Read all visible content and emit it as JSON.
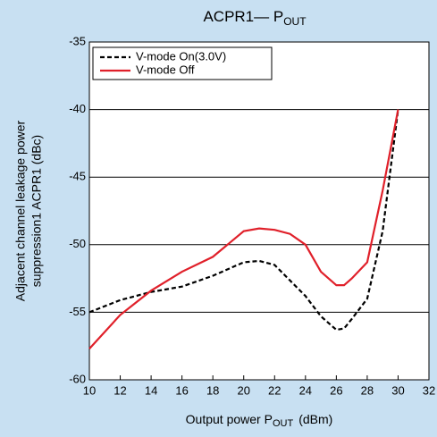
{
  "chart_data": {
    "type": "line",
    "title": "ACPR1— P",
    "title_sub": "OUT",
    "xlabel": "Output power   P",
    "xlabel_sub": "OUT",
    "xlabel_unit": "(dBm)",
    "ylabel_lines": [
      "Adjacent channel leakage power",
      "suppression1   ACPR1  (dBc)"
    ],
    "xlim": [
      10,
      32
    ],
    "xticks": [
      10,
      12,
      14,
      16,
      18,
      20,
      22,
      24,
      26,
      28,
      30,
      32
    ],
    "ylim": [
      -60,
      -35
    ],
    "yticks": [
      -60,
      -55,
      -50,
      -45,
      -40,
      -35
    ],
    "grid": true,
    "legend": "upper left",
    "series": [
      {
        "name": "V-mode On(3.0V)",
        "color": "#000000",
        "dash": true,
        "x": [
          10,
          12,
          14,
          16,
          18,
          20,
          21,
          22,
          24,
          25,
          26,
          26.5,
          27,
          28,
          29,
          30
        ],
        "values": [
          -55,
          -54.1,
          -53.5,
          -53.1,
          -52.3,
          -51.3,
          -51.2,
          -51.5,
          -53.8,
          -55.3,
          -56.3,
          -56.2,
          -55.5,
          -54,
          -49,
          -40
        ]
      },
      {
        "name": "V-mode Off",
        "color": "#e0202a",
        "dash": false,
        "x": [
          10,
          12,
          14,
          16,
          18,
          20,
          21,
          22,
          23,
          24,
          25,
          26,
          26.5,
          27,
          28,
          29,
          30
        ],
        "values": [
          -57.7,
          -55.2,
          -53.4,
          -52,
          -50.9,
          -49,
          -48.8,
          -48.9,
          -49.2,
          -50,
          -52,
          -53,
          -53,
          -52.5,
          -51.3,
          -46,
          -40
        ]
      }
    ]
  }
}
